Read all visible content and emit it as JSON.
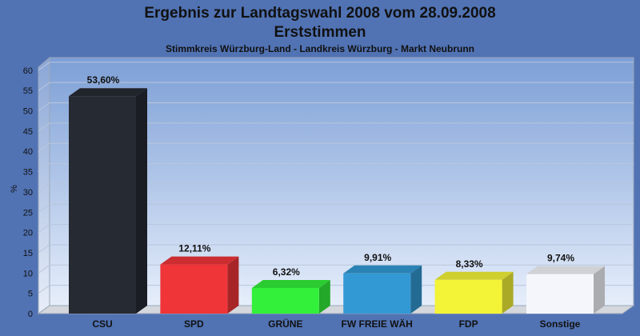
{
  "chart_data": {
    "type": "bar",
    "title": "Ergebnis zur Landtagswahl 2008 vom 28.09.2008",
    "subtitle": "Erststimmen",
    "caption": "Stimmkreis Würzburg-Land - Landkreis Würzburg - Markt Neubrunn",
    "ylabel": "%",
    "xlabel": "",
    "ylim": [
      0,
      60
    ],
    "yticks": [
      "0",
      "5",
      "10",
      "15",
      "20",
      "25",
      "30",
      "35",
      "40",
      "45",
      "50",
      "55",
      "60"
    ],
    "grid": true,
    "categories": [
      "CSU",
      "SPD",
      "GRÜNE",
      "FW FREIE WÄH",
      "FDP",
      "Sonstige"
    ],
    "values": [
      53.6,
      12.11,
      6.32,
      9.91,
      8.33,
      9.74
    ],
    "labels": [
      "53,60%",
      "12,11%",
      "6,32%",
      "9,91%",
      "8,33%",
      "9,74%"
    ],
    "colors": [
      "#262a33",
      "#ef3538",
      "#33f03a",
      "#3399d4",
      "#f3f337",
      "#f4f6fb"
    ]
  }
}
